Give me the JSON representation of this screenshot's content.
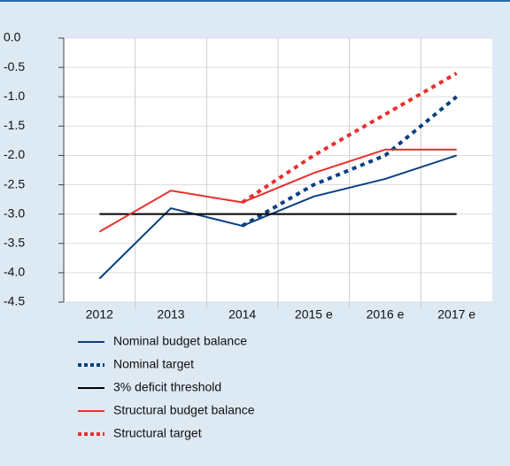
{
  "chart_data": {
    "type": "line",
    "categories": [
      "2012",
      "2013",
      "2014",
      "2015 e",
      "2016 e",
      "2017 e"
    ],
    "series": [
      {
        "name": "Nominal budget balance",
        "color": "#0b3f7f",
        "dashed": false,
        "values": [
          -4.1,
          -2.9,
          -3.2,
          -2.7,
          -2.4,
          -2.0
        ]
      },
      {
        "name": "Nominal target",
        "color": "#0b3f7f",
        "dashed": true,
        "values": [
          null,
          null,
          -3.2,
          -2.5,
          -2.0,
          -1.0
        ]
      },
      {
        "name": "3% deficit threshold",
        "color": "#000000",
        "dashed": false,
        "values": [
          -3.0,
          -3.0,
          -3.0,
          -3.0,
          -3.0,
          -3.0
        ]
      },
      {
        "name": "Structural budget balance",
        "color": "#e8302d",
        "dashed": false,
        "values": [
          -3.3,
          -2.6,
          -2.8,
          -2.3,
          -1.9,
          -1.9
        ]
      },
      {
        "name": "Structural target",
        "color": "#e8302d",
        "dashed": true,
        "values": [
          null,
          null,
          -2.8,
          -2.0,
          -1.3,
          -0.6
        ]
      }
    ],
    "ylim": [
      -4.5,
      0
    ],
    "yticks": [
      {
        "value": 0,
        "label": "0.0"
      },
      -0.5,
      {
        "value": -1,
        "label": "-1.0"
      },
      -1.5,
      {
        "value": -2,
        "label": "-2.0"
      },
      -2.5,
      {
        "value": -3,
        "label": "-3.0"
      },
      -3.5,
      {
        "value": -4,
        "label": "-4.0"
      },
      -4.5
    ],
    "grid": true
  }
}
